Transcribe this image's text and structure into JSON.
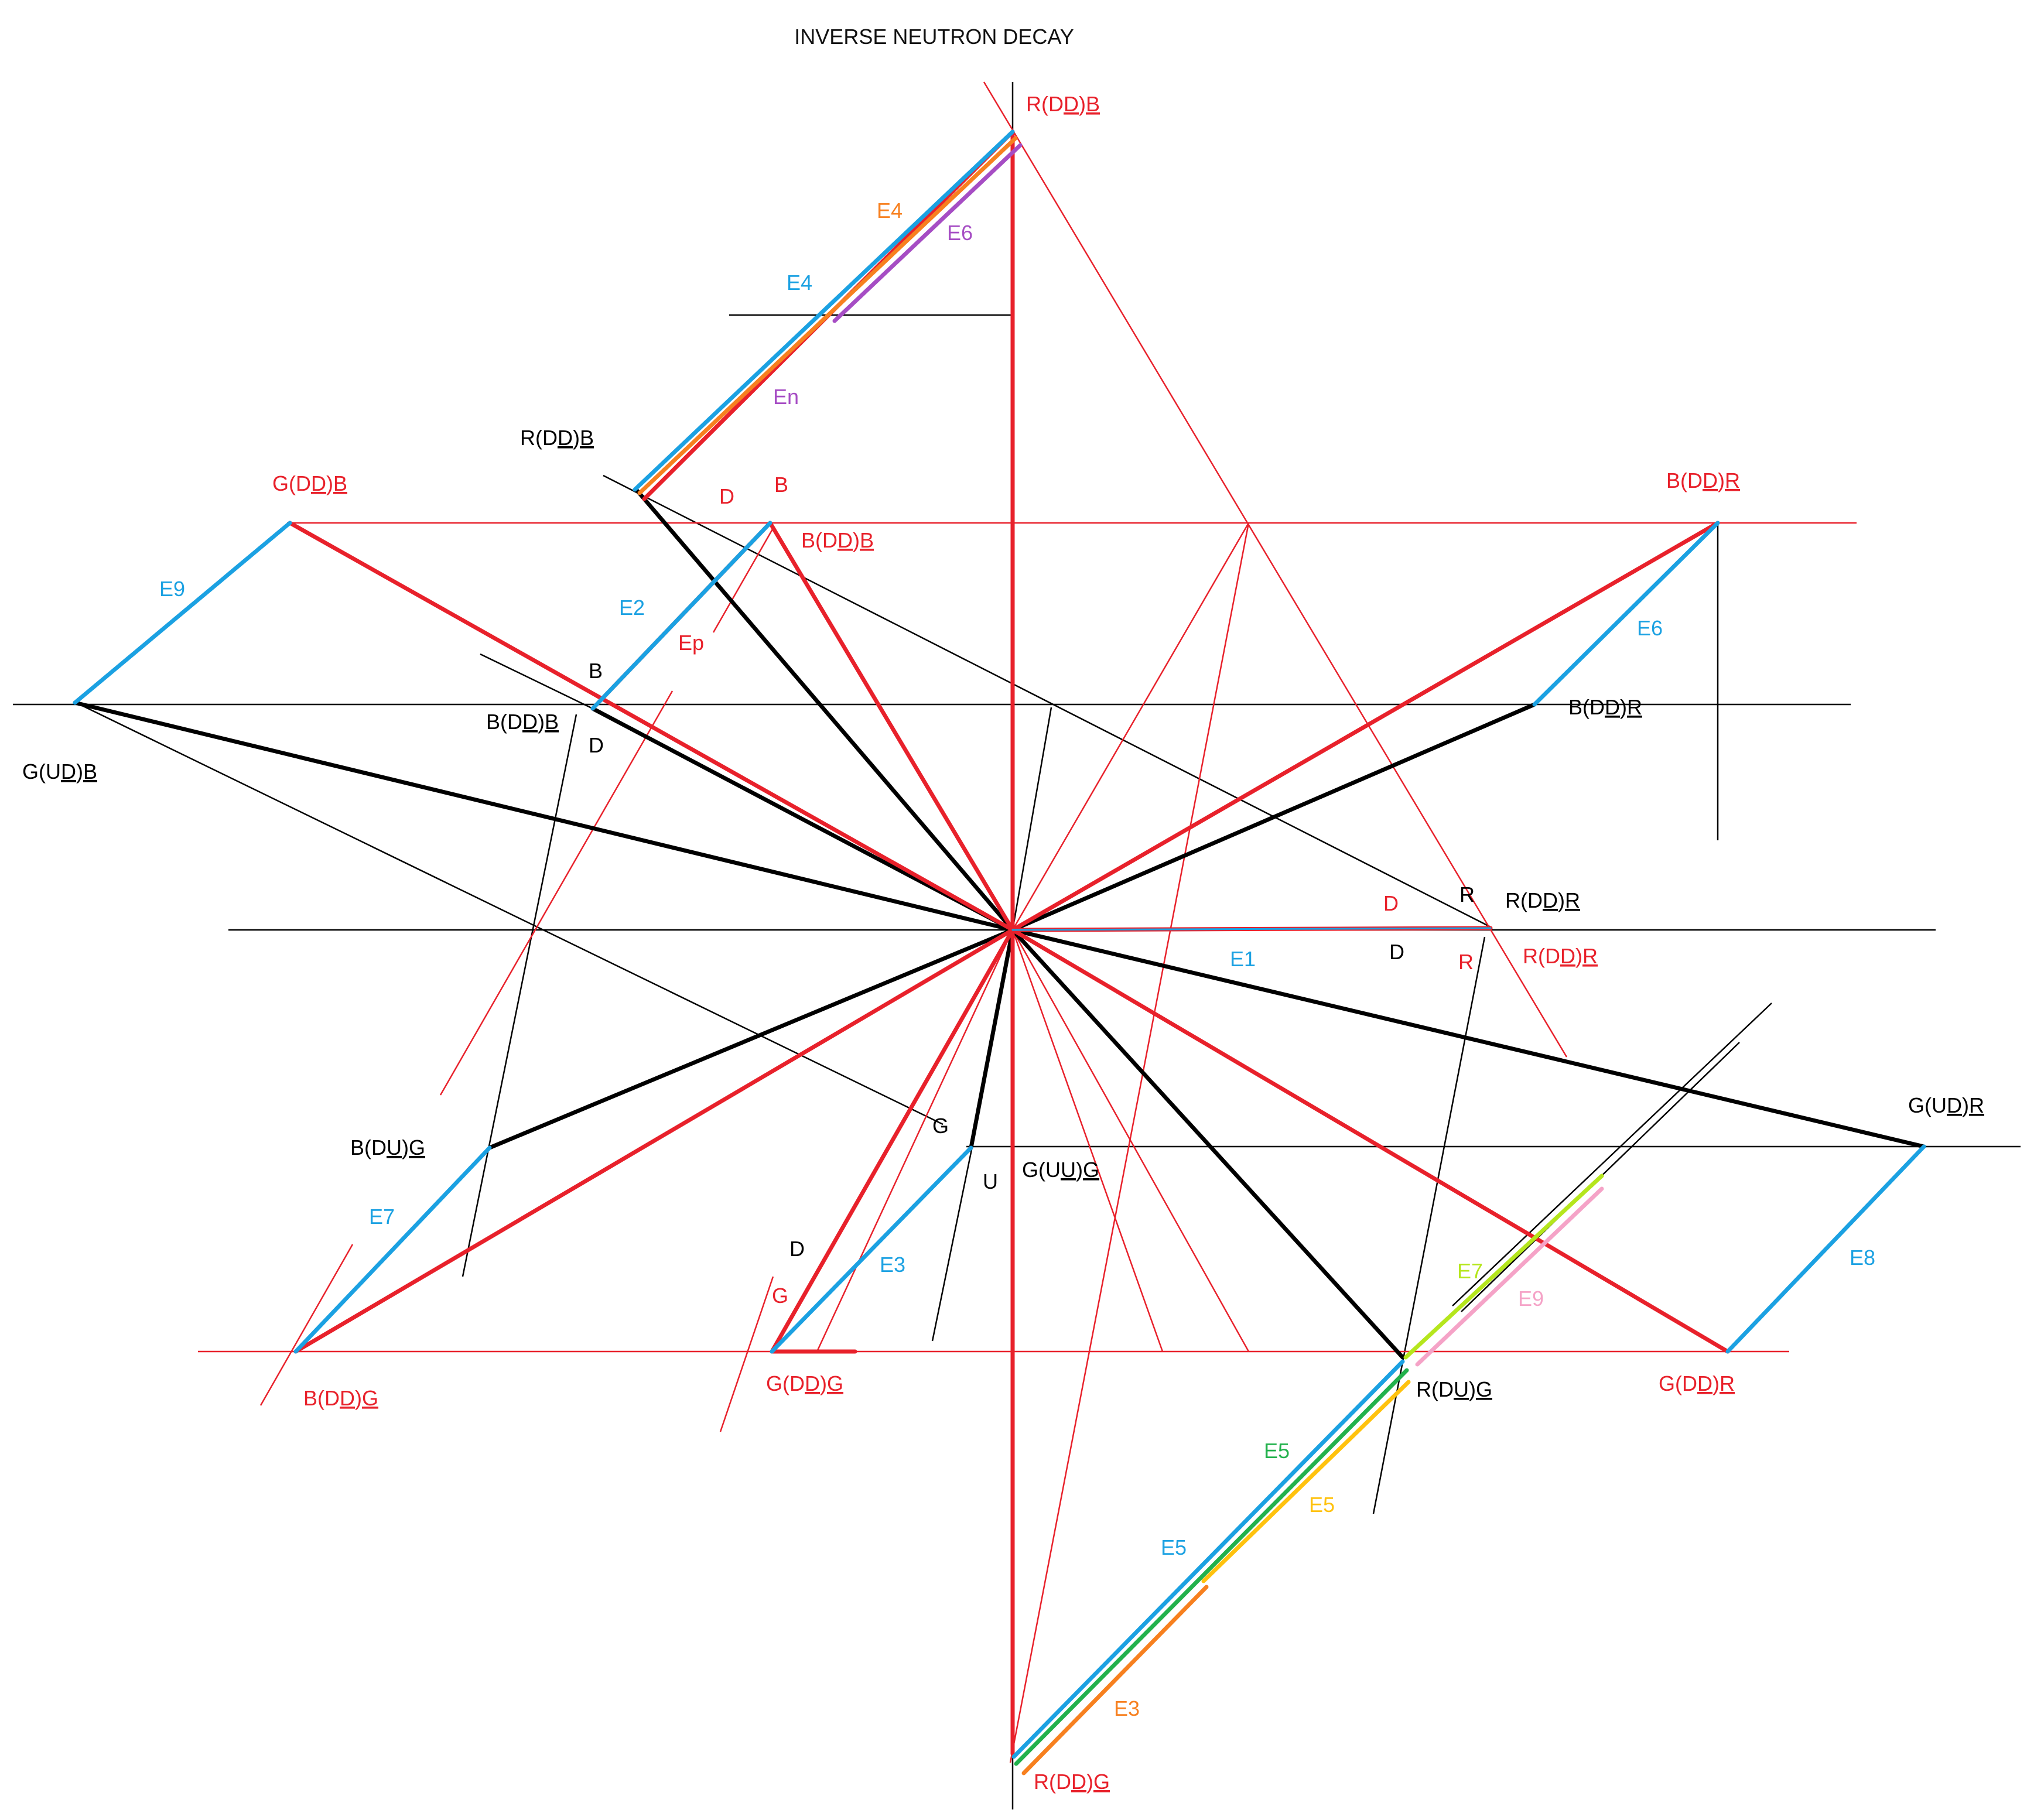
{
  "title": "INVERSE NEUTRON DECAY",
  "colors": {
    "black": "#000000",
    "red": "#e8212b",
    "blue": "#1ba1e2",
    "orange": "#f7801f",
    "purple": "#a64dc4",
    "green": "#22b14c",
    "yellow": "#ffc20e",
    "lime": "#b5e61d",
    "pink": "#f5a3c7"
  },
  "node_labels": [
    {
      "id": "rddb-top",
      "pre": "R(D",
      "mid": "D",
      "post": ")",
      "tail": "B",
      "color": "red"
    },
    {
      "id": "rddb-left",
      "pre": "R(D",
      "mid": "D",
      "post": ")",
      "tail": "B",
      "color": "black"
    },
    {
      "id": "gddb",
      "pre": "G(D",
      "mid": "D",
      "post": ")",
      "tail": "B",
      "color": "red"
    },
    {
      "id": "bddb-red",
      "pre": "B(D",
      "mid": "D",
      "post": ")",
      "tail": "B",
      "color": "red"
    },
    {
      "id": "bddb-black",
      "pre": "B(D",
      "mid": "D",
      "post": ")",
      "tail": "B",
      "color": "black"
    },
    {
      "id": "bddr-red",
      "pre": "B(D",
      "mid": "D",
      "post": ")",
      "tail": "R",
      "color": "red"
    },
    {
      "id": "bddr-black",
      "pre": "B(D",
      "mid": "D",
      "post": ")",
      "tail": "R",
      "color": "black"
    },
    {
      "id": "gudb",
      "pre": "G(U",
      "mid": "D",
      "post": ")",
      "tail": "B",
      "color": "black"
    },
    {
      "id": "rddr-black",
      "pre": "R(D",
      "mid": "D",
      "post": ")",
      "tail": "R",
      "color": "black"
    },
    {
      "id": "rddr-red",
      "pre": "R(D",
      "mid": "D",
      "post": ")",
      "tail": "R",
      "color": "red"
    },
    {
      "id": "gudr",
      "pre": "G(U",
      "mid": "D",
      "post": ")",
      "tail": "R",
      "color": "black"
    },
    {
      "id": "bdug",
      "pre": "B(D",
      "mid": "U",
      "post": ")",
      "tail": "G",
      "color": "black"
    },
    {
      "id": "guug",
      "pre": "G(U",
      "mid": "U",
      "post": ")",
      "tail": "G",
      "color": "black"
    },
    {
      "id": "bddg",
      "pre": "B(D",
      "mid": "D",
      "post": ")",
      "tail": "G",
      "color": "red"
    },
    {
      "id": "gddg",
      "pre": "G(D",
      "mid": "D",
      "post": ")",
      "tail": "G",
      "color": "red"
    },
    {
      "id": "rdug",
      "pre": "R(D",
      "mid": "U",
      "post": ")",
      "tail": "G",
      "color": "black"
    },
    {
      "id": "gddr",
      "pre": "G(D",
      "mid": "D",
      "post": ")",
      "tail": "R",
      "color": "red"
    },
    {
      "id": "rddg",
      "pre": "R(D",
      "mid": "D",
      "post": ")",
      "tail": "G",
      "color": "red"
    }
  ],
  "edge_labels": [
    {
      "id": "e4-orange",
      "text": "E4",
      "color": "orange"
    },
    {
      "id": "e6-purple",
      "text": "E6",
      "color": "purple"
    },
    {
      "id": "e4-blue",
      "text": "E4",
      "color": "blue"
    },
    {
      "id": "en-purple",
      "text": "En",
      "color": "purple"
    },
    {
      "id": "e9-blue",
      "text": "E9",
      "color": "blue"
    },
    {
      "id": "e2-blue",
      "text": "E2",
      "color": "blue"
    },
    {
      "id": "ep-red",
      "text": "Ep",
      "color": "red"
    },
    {
      "id": "e6-blue",
      "text": "E6",
      "color": "blue"
    },
    {
      "id": "e1-blue",
      "text": "E1",
      "color": "blue"
    },
    {
      "id": "e7-blue",
      "text": "E7",
      "color": "blue"
    },
    {
      "id": "e3-blue",
      "text": "E3",
      "color": "blue"
    },
    {
      "id": "e7-lime",
      "text": "E7",
      "color": "lime"
    },
    {
      "id": "e9-pink",
      "text": "E9",
      "color": "pink"
    },
    {
      "id": "e8-blue",
      "text": "E8",
      "color": "blue"
    },
    {
      "id": "e5-green",
      "text": "E5",
      "color": "green"
    },
    {
      "id": "e5-yellow",
      "text": "E5",
      "color": "yellow"
    },
    {
      "id": "e5-blue",
      "text": "E5",
      "color": "blue"
    },
    {
      "id": "e3-orange",
      "text": "E3",
      "color": "orange"
    }
  ],
  "quark_labels": [
    {
      "id": "q-d-red-top",
      "text": "D",
      "color": "red"
    },
    {
      "id": "q-b-red-top",
      "text": "B",
      "color": "red"
    },
    {
      "id": "q-b-black-left",
      "text": "B",
      "color": "black"
    },
    {
      "id": "q-d-black-left",
      "text": "D",
      "color": "black"
    },
    {
      "id": "q-d-red-right",
      "text": "D",
      "color": "red"
    },
    {
      "id": "q-r-black-right",
      "text": "R",
      "color": "black"
    },
    {
      "id": "q-d-black-right",
      "text": "D",
      "color": "black"
    },
    {
      "id": "q-r-red-right",
      "text": "R",
      "color": "red"
    },
    {
      "id": "q-g-black-bottom",
      "text": "G",
      "color": "black"
    },
    {
      "id": "q-u-black-bottom",
      "text": "U",
      "color": "black"
    },
    {
      "id": "q-d-black-bottom",
      "text": "D",
      "color": "black"
    },
    {
      "id": "q-g-red-bottom",
      "text": "G",
      "color": "red"
    }
  ]
}
